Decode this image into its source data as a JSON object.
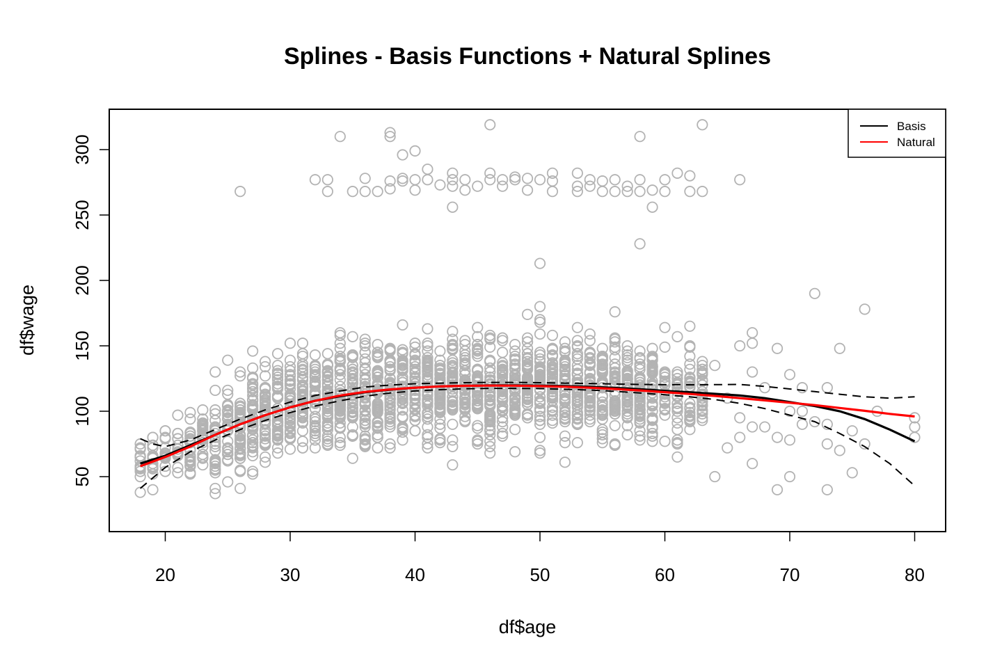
{
  "chart_data": {
    "type": "scatter",
    "title": "Splines - Basis Functions + Natural Splines",
    "xlabel": "df$age",
    "ylabel": "df$wage",
    "xlim": [
      18,
      80
    ],
    "ylim": [
      20,
      318
    ],
    "x_ticks": [
      "20",
      "30",
      "40",
      "50",
      "60",
      "70",
      "80"
    ],
    "y_ticks": [
      "50",
      "100",
      "150",
      "200",
      "250",
      "300"
    ],
    "legend": {
      "position": "top-right",
      "entries": [
        {
          "name": "Basis",
          "color": "#000000"
        },
        {
          "name": "Natural",
          "color": "#ff0000"
        }
      ]
    },
    "colors": {
      "points": "#b3b3b3",
      "basis": "#000000",
      "natural": "#ff0000"
    },
    "points": {
      "marker": "open-circle",
      "high_wage_outliers": [
        [
          26,
          268
        ],
        [
          32,
          277
        ],
        [
          33,
          277
        ],
        [
          33,
          268
        ],
        [
          34,
          310
        ],
        [
          35,
          268
        ],
        [
          36,
          278
        ],
        [
          36,
          268
        ],
        [
          37,
          268
        ],
        [
          38,
          313
        ],
        [
          38,
          310
        ],
        [
          38,
          276
        ],
        [
          38,
          270
        ],
        [
          39,
          296
        ],
        [
          39,
          278
        ],
        [
          39,
          276
        ],
        [
          40,
          299
        ],
        [
          40,
          277
        ],
        [
          40,
          269
        ],
        [
          41,
          285
        ],
        [
          41,
          277
        ],
        [
          42,
          273
        ],
        [
          43,
          282
        ],
        [
          43,
          277
        ],
        [
          43,
          272
        ],
        [
          43,
          256
        ],
        [
          44,
          277
        ],
        [
          44,
          269
        ],
        [
          45,
          272
        ],
        [
          46,
          319
        ],
        [
          46,
          282
        ],
        [
          46,
          277
        ],
        [
          47,
          277
        ],
        [
          47,
          272
        ],
        [
          48,
          279
        ],
        [
          48,
          277
        ],
        [
          49,
          278
        ],
        [
          49,
          269
        ],
        [
          50,
          277
        ],
        [
          51,
          282
        ],
        [
          51,
          276
        ],
        [
          51,
          268
        ],
        [
          53,
          282
        ],
        [
          53,
          272
        ],
        [
          53,
          268
        ],
        [
          54,
          277
        ],
        [
          54,
          272
        ],
        [
          55,
          276
        ],
        [
          55,
          268
        ],
        [
          56,
          277
        ],
        [
          56,
          268
        ],
        [
          57,
          272
        ],
        [
          57,
          268
        ],
        [
          58,
          310
        ],
        [
          58,
          277
        ],
        [
          58,
          268
        ],
        [
          59,
          269
        ],
        [
          59,
          256
        ],
        [
          60,
          277
        ],
        [
          60,
          268
        ],
        [
          61,
          282
        ],
        [
          62,
          280
        ],
        [
          62,
          268
        ],
        [
          63,
          319
        ],
        [
          63,
          268
        ],
        [
          66,
          277
        ],
        [
          58,
          228
        ],
        [
          50,
          213
        ]
      ],
      "sparse_tail": [
        [
          64,
          50
        ],
        [
          64,
          135
        ],
        [
          65,
          72
        ],
        [
          65,
          110
        ],
        [
          66,
          150
        ],
        [
          66,
          95
        ],
        [
          66,
          80
        ],
        [
          67,
          160
        ],
        [
          67,
          152
        ],
        [
          67,
          130
        ],
        [
          67,
          60
        ],
        [
          67,
          88
        ],
        [
          68,
          118
        ],
        [
          68,
          88
        ],
        [
          69,
          148
        ],
        [
          69,
          80
        ],
        [
          69,
          40
        ],
        [
          70,
          128
        ],
        [
          70,
          100
        ],
        [
          70,
          78
        ],
        [
          70,
          50
        ],
        [
          71,
          118
        ],
        [
          71,
          100
        ],
        [
          71,
          90
        ],
        [
          72,
          190
        ],
        [
          72,
          92
        ],
        [
          73,
          118
        ],
        [
          73,
          90
        ],
        [
          73,
          75
        ],
        [
          73,
          40
        ],
        [
          74,
          148
        ],
        [
          74,
          70
        ],
        [
          75,
          85
        ],
        [
          75,
          53
        ],
        [
          76,
          178
        ],
        [
          76,
          75
        ],
        [
          77,
          100
        ],
        [
          80,
          95
        ],
        [
          80,
          88
        ],
        [
          80,
          80
        ]
      ],
      "dense_age_range": [
        18,
        63
      ],
      "dense_wage_range": [
        20,
        200
      ]
    },
    "series": [
      {
        "name": "Basis",
        "style": "solid",
        "x": [
          18,
          20,
          22,
          24,
          26,
          28,
          30,
          32,
          34,
          36,
          38,
          40,
          42,
          44,
          46,
          48,
          50,
          52,
          54,
          56,
          58,
          60,
          62,
          64,
          66,
          68,
          70,
          72,
          74,
          76,
          78,
          80
        ],
        "values": [
          60,
          66,
          74,
          82,
          90,
          97,
          103,
          108,
          111.5,
          114.5,
          116.5,
          118,
          119,
          119.5,
          119.8,
          119.8,
          119.6,
          119.2,
          118.6,
          117.8,
          116.8,
          115.6,
          114.5,
          113.3,
          112,
          110,
          107,
          104,
          100,
          94,
          86,
          77
        ]
      },
      {
        "name": "Natural",
        "style": "solid",
        "x": [
          18,
          20,
          22,
          24,
          26,
          28,
          30,
          32,
          34,
          36,
          38,
          40,
          42,
          44,
          46,
          48,
          50,
          52,
          54,
          56,
          58,
          60,
          62,
          64,
          66,
          68,
          70,
          72,
          74,
          76,
          78,
          80
        ],
        "values": [
          58,
          65,
          73,
          82,
          90,
          97,
          103,
          108,
          112,
          114.8,
          116.7,
          118,
          119,
          119.4,
          119.6,
          119.5,
          119.2,
          118.7,
          118,
          117,
          115.9,
          114.6,
          113.2,
          111.7,
          110,
          108.3,
          106.5,
          104.7,
          102.5,
          100.3,
          98,
          96
        ]
      },
      {
        "name": "Basis upper band",
        "style": "dashed",
        "x": [
          18,
          19,
          20,
          22,
          24,
          26,
          28,
          30,
          32,
          34,
          36,
          38,
          40,
          42,
          44,
          46,
          48,
          50,
          52,
          54,
          56,
          58,
          60,
          62,
          64,
          66,
          68,
          70,
          72,
          74,
          76,
          78,
          80
        ],
        "values": [
          79,
          75,
          73,
          78,
          86,
          94,
          101,
          107,
          112,
          115.5,
          118.5,
          120,
          121,
          121.5,
          121.8,
          122,
          122,
          121.8,
          121.5,
          121.2,
          120.8,
          120.5,
          120.3,
          120.2,
          120.3,
          120.5,
          119,
          117,
          115,
          113,
          111,
          110,
          111
        ]
      },
      {
        "name": "Basis lower band",
        "style": "dashed",
        "x": [
          18,
          20,
          22,
          24,
          26,
          28,
          30,
          32,
          34,
          36,
          38,
          40,
          42,
          44,
          46,
          48,
          50,
          52,
          54,
          56,
          58,
          60,
          62,
          64,
          66,
          68,
          70,
          72,
          74,
          76,
          78,
          80
        ],
        "values": [
          41,
          57,
          69,
          78,
          86,
          93,
          99,
          104,
          108,
          111.5,
          114,
          115.5,
          116.5,
          117.2,
          117.5,
          117.5,
          117.3,
          116.8,
          116.2,
          115.2,
          114,
          112.6,
          111,
          109,
          106,
          102,
          97,
          92,
          83,
          73,
          60,
          43
        ]
      }
    ]
  }
}
